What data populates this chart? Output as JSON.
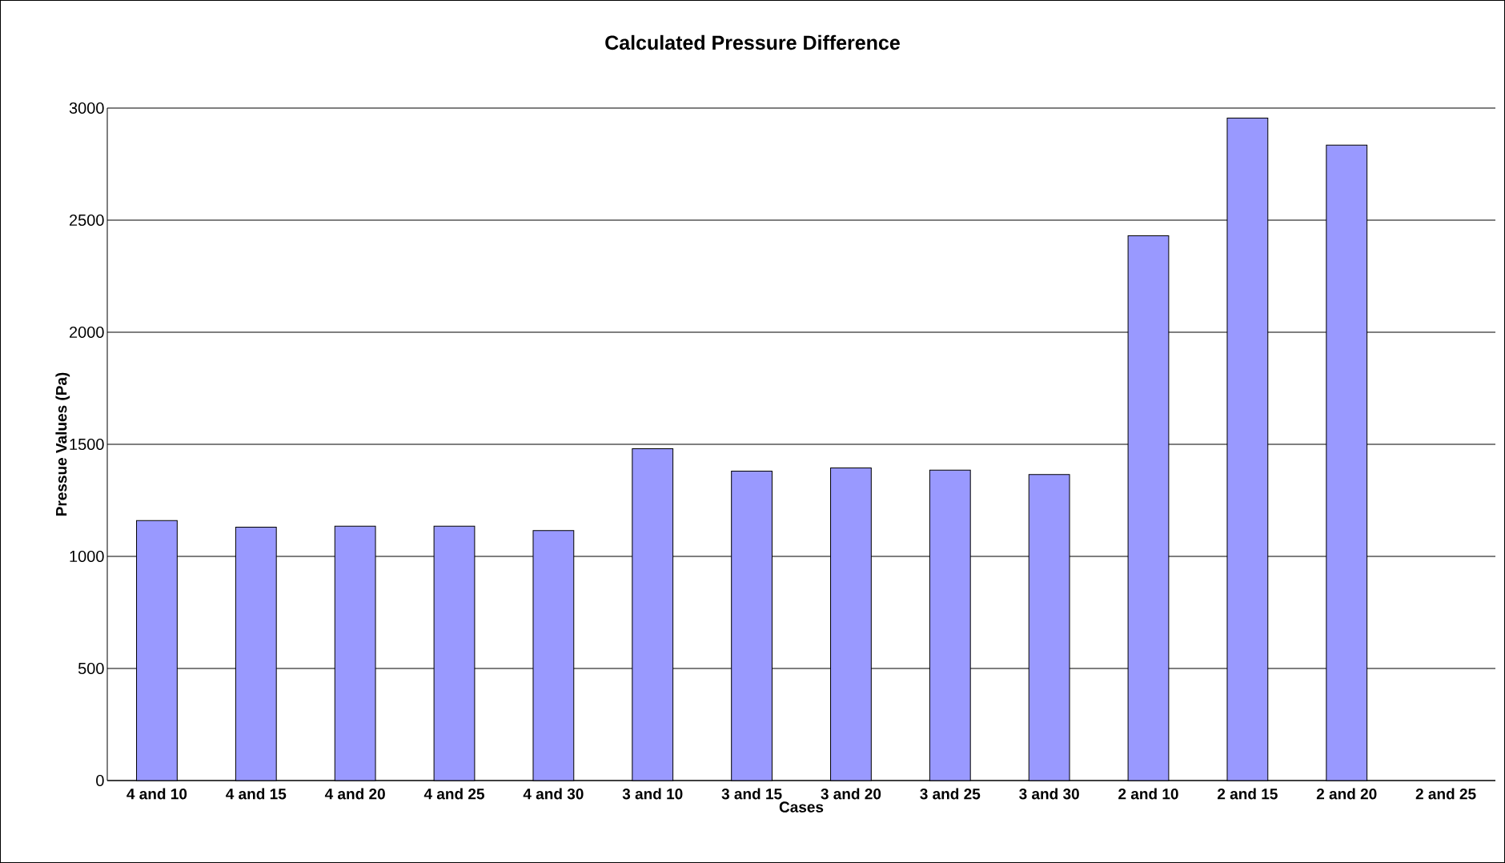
{
  "chart_data": {
    "type": "bar",
    "title": "Calculated Pressure Difference",
    "xlabel": "Cases",
    "ylabel": "Pressue Values (Pa)",
    "categories": [
      "4 and 10",
      "4 and 15",
      "4 and 20",
      "4 and 25",
      "4 and 30",
      "3 and 10",
      "3 and 15",
      "3 and 20",
      "3 and 25",
      "3 and 30",
      "2 and 10",
      "2 and 15",
      "2 and 20",
      "2 and 25"
    ],
    "values": [
      1160,
      1130,
      1135,
      1135,
      1115,
      1480,
      1380,
      1395,
      1385,
      1365,
      2430,
      2955,
      2835,
      null
    ],
    "color": "#9999ff",
    "ylim": [
      0,
      3000
    ],
    "yticks": [
      0,
      500,
      1000,
      1500,
      2000,
      2500,
      3000
    ],
    "grid": "y"
  }
}
